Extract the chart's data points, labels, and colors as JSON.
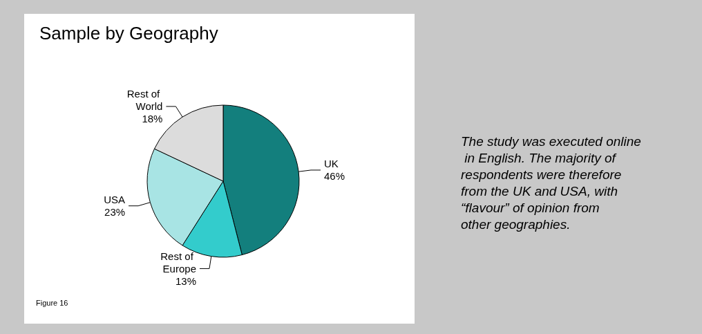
{
  "chart_data": {
    "type": "pie",
    "title": "Sample by Geography",
    "categories": [
      "UK",
      "Rest of Europe",
      "USA",
      "Rest of World"
    ],
    "values": [
      46,
      13,
      23,
      18
    ],
    "value_labels": [
      "46%",
      "13%",
      "23%",
      "18%"
    ],
    "colors": [
      "#137f7d",
      "#33cccc",
      "#a8e4e4",
      "#dcdcdc"
    ],
    "legend": false,
    "annotations": [
      "The study was executed online in English. The majority of respondents were therefore from the UK and USA, with “flavour” of opinion from other geographies.",
      "Figure 16"
    ]
  }
}
